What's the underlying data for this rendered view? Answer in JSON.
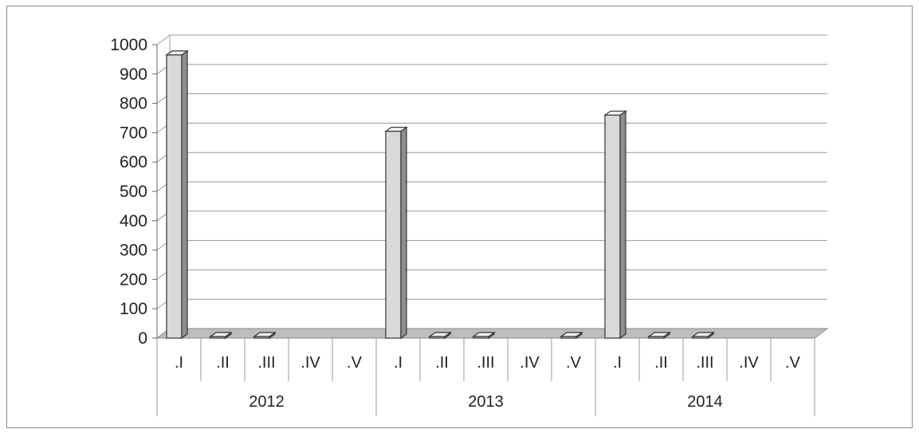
{
  "chart_data": {
    "type": "bar",
    "title": "",
    "xlabel": "",
    "ylabel": "",
    "ylim": [
      0,
      1000
    ],
    "yticks": [
      0,
      100,
      200,
      300,
      400,
      500,
      600,
      700,
      800,
      900,
      1000
    ],
    "grid": true,
    "legend": "none",
    "bar_color": "#d9d9d9",
    "groups": [
      "2012",
      "2013",
      "2014"
    ],
    "categories": [
      ".I",
      ".II",
      ".III",
      ".IV",
      ".V"
    ],
    "values": [
      [
        965,
        0,
        0,
        null,
        null
      ],
      [
        705,
        0,
        0,
        null,
        0
      ],
      [
        760,
        0,
        0,
        null,
        null
      ]
    ]
  }
}
